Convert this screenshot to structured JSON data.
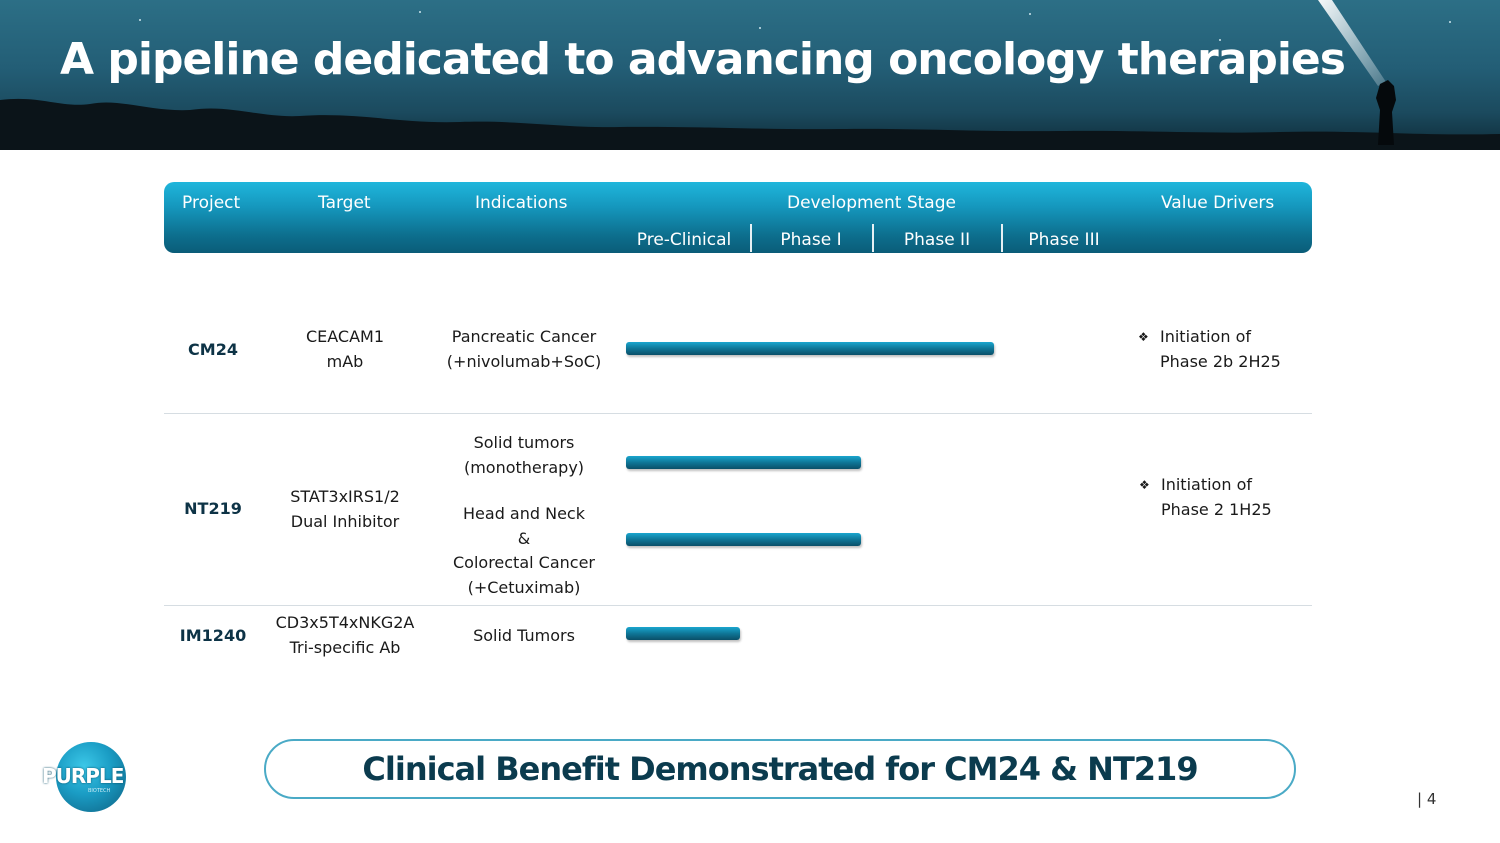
{
  "banner": {
    "title": "A pipeline dedicated to advancing oncology therapies"
  },
  "table": {
    "headers": {
      "project": "Project",
      "target": "Target",
      "indications": "Indications",
      "development_stage": "Development Stage",
      "value_drivers": "Value Drivers"
    },
    "stages": [
      "Pre-Clinical",
      "Phase I",
      "Phase II",
      "Phase III"
    ],
    "rows": [
      {
        "project": "CM24",
        "target": [
          "CEACAM1",
          "mAb"
        ],
        "indications": [
          [
            "Pancreatic Cancer",
            "(+nivolumab+SoC)"
          ]
        ],
        "progress": [
          2.9
        ],
        "value_driver": [
          "Initiation of",
          "Phase 2b 2H25"
        ]
      },
      {
        "project": "NT219",
        "target": [
          "STAT3xIRS1/2",
          "Dual Inhibitor"
        ],
        "indications": [
          [
            "Solid tumors",
            "(monotherapy)"
          ],
          [
            "Head and Neck",
            "&",
            "Colorectal Cancer",
            "(+Cetuximab)"
          ]
        ],
        "progress": [
          1.85,
          1.85
        ],
        "value_driver": [
          "Initiation of",
          "Phase 2 1H25"
        ]
      },
      {
        "project": "IM1240",
        "target": [
          "CD3x5T4xNKG2A",
          "Tri-specific Ab"
        ],
        "indications": [
          [
            "Solid Tumors"
          ]
        ],
        "progress": [
          0.9
        ],
        "value_driver": []
      }
    ],
    "progress_unit": "stages completed (Pre-Clinical=1, Phase I=2, Phase II=3, Phase III=4)"
  },
  "footer": {
    "callout": "Clinical Benefit Demonstrated for CM24 & NT219",
    "logo_text": "PURPLE",
    "logo_subtext": "BIOTECH",
    "page_number": "| 4"
  },
  "colors": {
    "header_gradient_top": "#1fb6dc",
    "header_gradient_bottom": "#0a5c78",
    "bar": "#0f7697",
    "callout_text": "#0b3b4e",
    "callout_border": "#4aaac6"
  },
  "icons": {
    "bullet": "diamond-bullet-icon"
  }
}
